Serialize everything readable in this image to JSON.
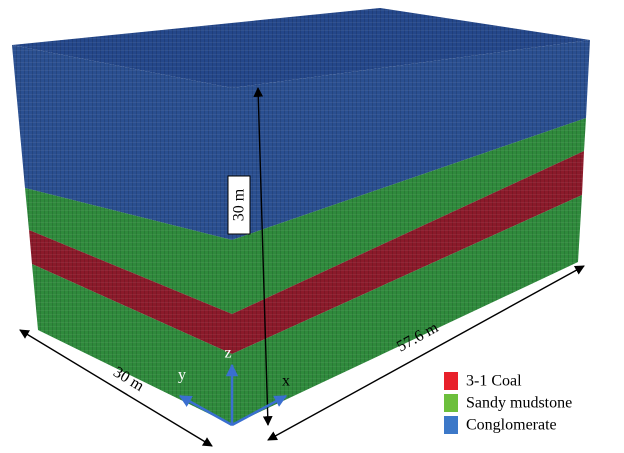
{
  "dimensions": {
    "height": "30 m",
    "width": "30 m",
    "length": "57.6 m"
  },
  "axes": {
    "x": "x",
    "y": "y",
    "z": "z"
  },
  "legend": [
    {
      "label": "3-1 Coal",
      "color": "#e8202a"
    },
    {
      "label": "Sandy mudstone",
      "color": "#6cbf3c"
    },
    {
      "label": "Conglomerate",
      "color": "#3c78c8"
    }
  ]
}
